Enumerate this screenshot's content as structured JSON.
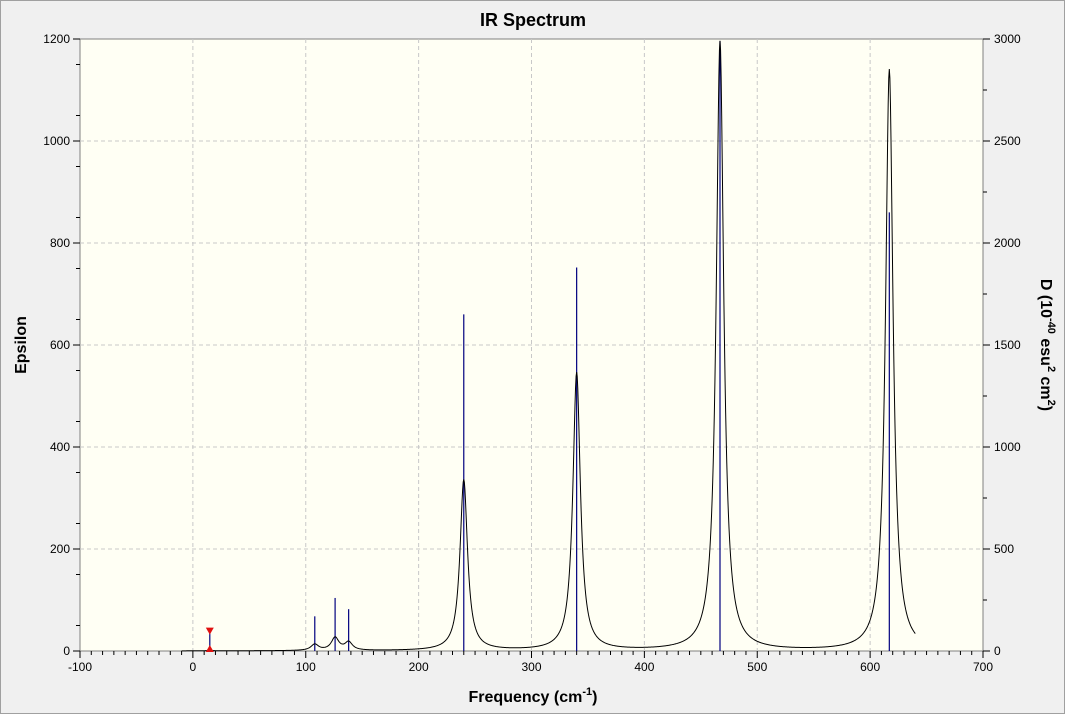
{
  "chart_data": {
    "type": "line",
    "title": "IR Spectrum",
    "xlabel": "Frequency (cm",
    "xlabel_sup": "-1",
    "xlabel_end": ")",
    "ylabel": "Epsilon",
    "y2label": "D (10",
    "y2label_sup1": "-40",
    "y2label_mid": " esu",
    "y2label_sup2": "2",
    "y2label_mid2": " cm",
    "y2label_sup3": "2",
    "y2label_end": ")",
    "xlim": [
      -100,
      700
    ],
    "ylim": [
      0,
      1200
    ],
    "y2lim": [
      0,
      3000
    ],
    "x_ticks": [
      -100,
      0,
      100,
      200,
      300,
      400,
      500,
      600,
      700
    ],
    "y_ticks": [
      0,
      200,
      400,
      600,
      800,
      1000,
      1200
    ],
    "y2_ticks": [
      0,
      500,
      1000,
      1500,
      2000,
      2500,
      3000
    ],
    "grid": true,
    "spectrum_range": [
      -10,
      640
    ],
    "half_width": 4,
    "peaks": [
      {
        "x": 15,
        "epsilon": 0.5,
        "d": 95
      },
      {
        "x": 108,
        "epsilon": 12,
        "d": 170
      },
      {
        "x": 126,
        "epsilon": 25,
        "d": 260
      },
      {
        "x": 138,
        "epsilon": 16,
        "d": 205
      },
      {
        "x": 240,
        "epsilon": 335,
        "d": 1650
      },
      {
        "x": 340,
        "epsilon": 545,
        "d": 1880
      },
      {
        "x": 467,
        "epsilon": 1195,
        "d": 2990
      },
      {
        "x": 617,
        "epsilon": 1140,
        "d": 2150
      }
    ],
    "colors": {
      "spectrum": "#000000",
      "sticks": "#00007f",
      "marker": "#e01010",
      "plot_background": "#fffff4",
      "grid": "#c8c8c8"
    }
  }
}
